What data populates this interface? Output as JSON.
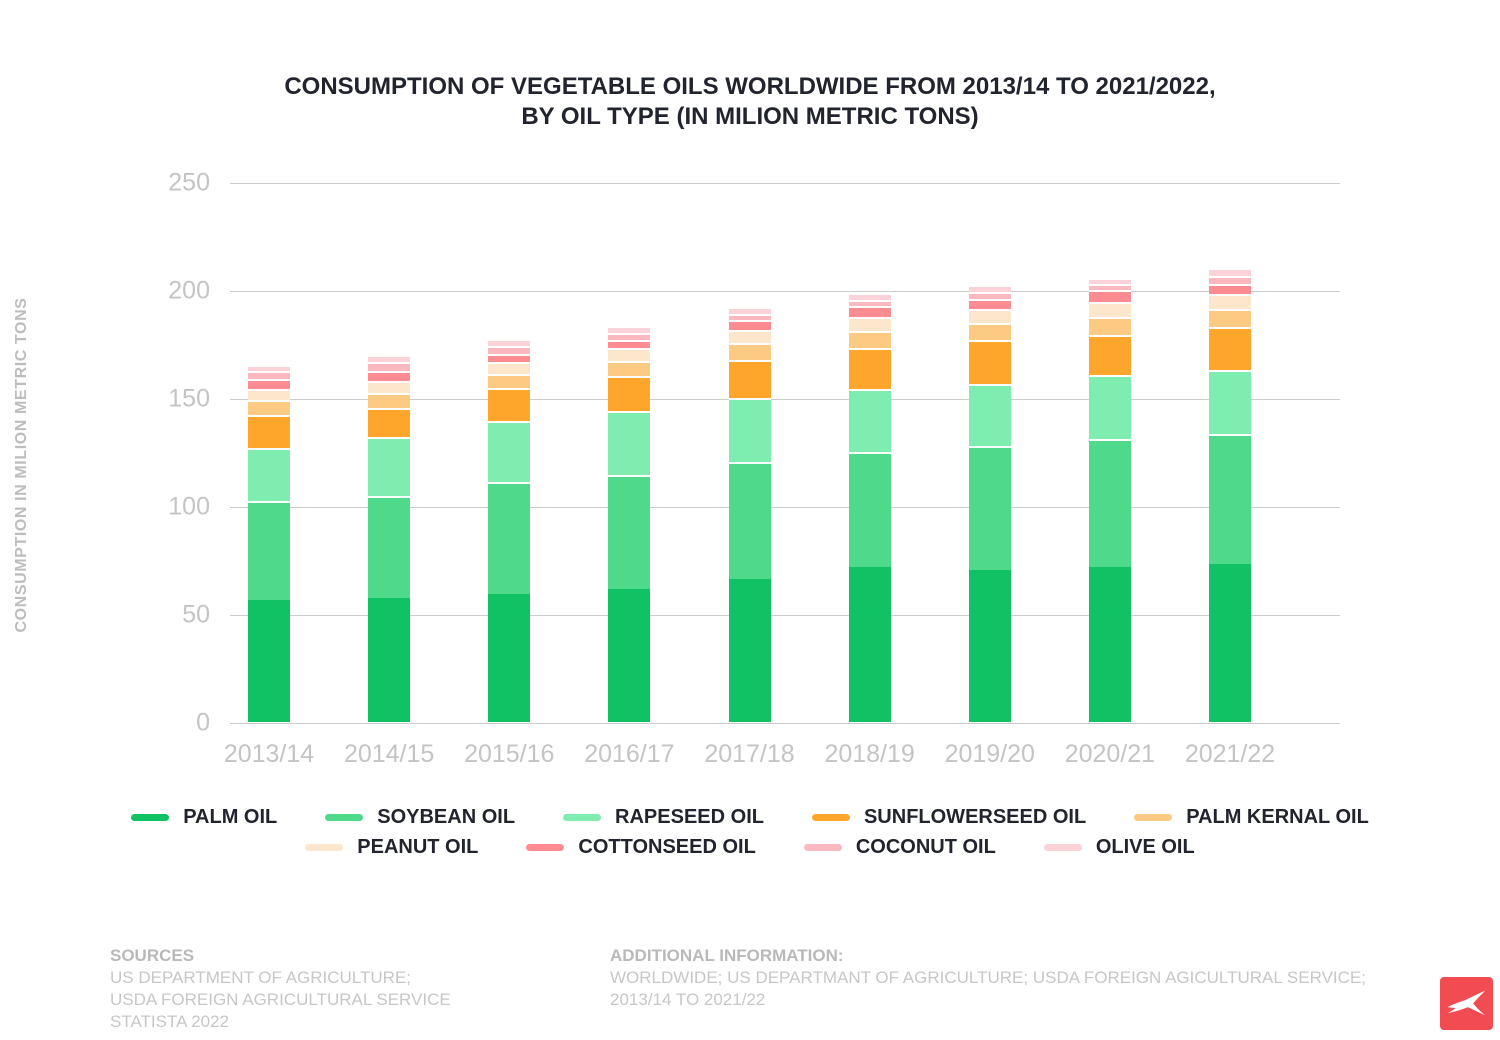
{
  "title": {
    "line1": "CONSUMPTION OF VEGETABLE OILS WORLDWIDE FROM 2013/14 TO 2021/2022,",
    "line2": "BY OIL TYPE (IN MILION METRIC TONS)"
  },
  "y_axis": {
    "label": "CONSUMPTION IN MILION METRIC TONS",
    "ticks": [
      0,
      50,
      100,
      150,
      200,
      250
    ],
    "max": 250
  },
  "chart_data": {
    "type": "bar",
    "stacked": true,
    "title": "CONSUMPTION OF VEGETABLE OILS WORLDWIDE FROM 2013/14 TO 2021/2022, BY OIL TYPE (IN MILION METRIC TONS)",
    "xlabel": "",
    "ylabel": "CONSUMPTION IN MILION METRIC TONS",
    "ylim": [
      0,
      250
    ],
    "grid": true,
    "legend_position": "bottom",
    "categories": [
      "2013/14",
      "2014/15",
      "2015/16",
      "2016/17",
      "2017/18",
      "2018/19",
      "2019/20",
      "2020/21",
      "2021/22"
    ],
    "series": [
      {
        "name": "PALM OIL",
        "color": "#10c263",
        "values": [
          56.5,
          57.5,
          59.5,
          61.5,
          66.0,
          72.0,
          70.5,
          72.0,
          73.0
        ]
      },
      {
        "name": "SOYBEAN OIL",
        "color": "#4fd98b",
        "values": [
          46.0,
          47.0,
          51.5,
          53.0,
          54.5,
          53.0,
          57.5,
          59.0,
          60.5
        ]
      },
      {
        "name": "RAPESEED OIL",
        "color": "#7eedaf",
        "values": [
          24.5,
          27.5,
          28.5,
          29.5,
          29.5,
          29.0,
          28.5,
          29.5,
          29.5
        ]
      },
      {
        "name": "SUNFLOWERSEED OIL",
        "color": "#fda62b",
        "values": [
          15.0,
          13.5,
          15.0,
          16.0,
          17.5,
          19.0,
          20.5,
          18.5,
          20.0
        ]
      },
      {
        "name": "PALM KERNAL OIL",
        "color": "#fdca83",
        "values": [
          7.0,
          7.0,
          6.5,
          7.0,
          8.0,
          8.0,
          7.5,
          8.5,
          8.0
        ]
      },
      {
        "name": "PEANUT OIL",
        "color": "#fde7cc",
        "values": [
          5.0,
          5.5,
          5.5,
          6.0,
          6.0,
          6.5,
          6.5,
          7.0,
          7.0
        ]
      },
      {
        "name": "COTTONSEED OIL",
        "color": "#fc8b92",
        "values": [
          5.0,
          4.5,
          4.0,
          4.0,
          4.5,
          5.0,
          5.0,
          5.5,
          5.0
        ]
      },
      {
        "name": "COCONUT OIL",
        "color": "#fcb8bf",
        "values": [
          3.5,
          4.0,
          3.5,
          3.0,
          3.0,
          3.0,
          3.0,
          3.0,
          3.5
        ]
      },
      {
        "name": "OLIVE OIL",
        "color": "#fbd2d8",
        "values": [
          3.0,
          3.5,
          3.5,
          3.5,
          3.0,
          3.0,
          3.5,
          2.5,
          3.5
        ]
      }
    ],
    "legend_rows": [
      5,
      4
    ]
  },
  "footer": {
    "sources_heading": "SOURCES",
    "sources_lines": [
      "US DEPARTMENT OF AGRICULTURE;",
      "USDA FOREIGN AGRICULTURAL SERVICE",
      "STATISTA 2022"
    ],
    "info_heading": "ADDITIONAL INFORMATION:",
    "info_lines": [
      "WORLDWIDE; US DEPARTMANT OF AGRICULTURE; USDA FOREIGN AGICULTURAL SERVICE;",
      "2013/14 TO 2021/22"
    ]
  },
  "logo": {
    "color": "#f24c52",
    "name": "x-logo"
  },
  "colors": {
    "gridline": "#cccccc",
    "axis_text": "#c4c4c4",
    "title_text": "#21242e"
  }
}
